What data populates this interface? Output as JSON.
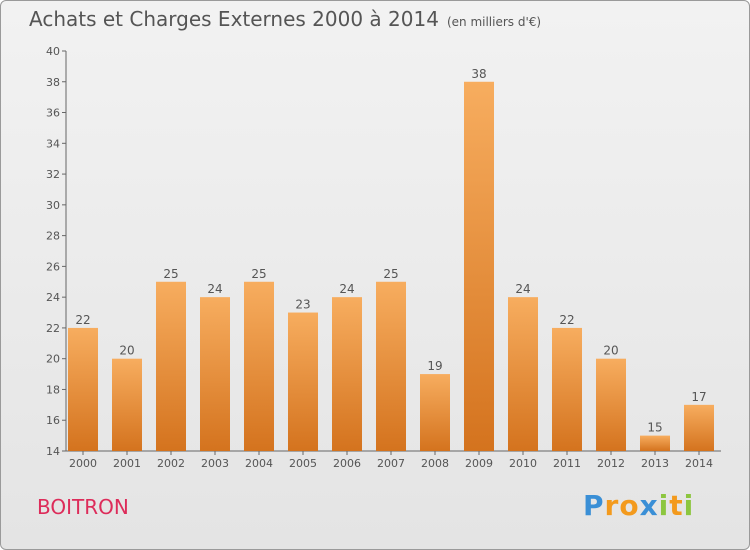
{
  "title": "Achats et Charges Externes 2000 à 2014",
  "unit": "(en milliers d'€)",
  "place": "BOITRON",
  "logo": {
    "letters": [
      "P",
      "r",
      "o",
      "x",
      "i",
      "t",
      "i"
    ],
    "colors": [
      "#3a8fd6",
      "#f39a1d",
      "#f39a1d",
      "#3a8fd6",
      "#8cc63f",
      "#f39a1d",
      "#8cc63f"
    ]
  },
  "colors": {
    "bar_light": "#f7ad5f",
    "bar_dark": "#d4731e",
    "place_text": "#dd2c5a"
  },
  "chart_data": {
    "type": "bar",
    "categories": [
      "2000",
      "2001",
      "2002",
      "2003",
      "2004",
      "2005",
      "2006",
      "2007",
      "2008",
      "2009",
      "2010",
      "2011",
      "2012",
      "2013",
      "2014"
    ],
    "values": [
      22,
      20,
      25,
      24,
      25,
      23,
      24,
      25,
      19,
      38,
      24,
      22,
      20,
      15,
      17
    ],
    "title": "Achats et Charges Externes 2000 à 2014",
    "xlabel": "",
    "ylabel": "",
    "ylim": [
      14,
      40
    ],
    "yticks": [
      14,
      16,
      18,
      20,
      22,
      24,
      26,
      28,
      30,
      32,
      34,
      36,
      38,
      40
    ],
    "grid": false,
    "data_labels": true
  }
}
